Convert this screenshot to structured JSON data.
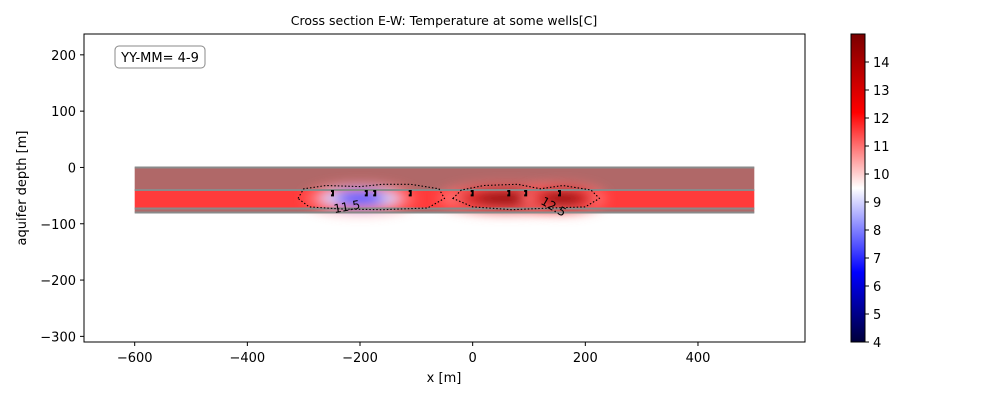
{
  "chart_data": {
    "type": "heatmap",
    "title": "Cross section E-W: Temperature at some wells[C]",
    "xlabel": "x [m]",
    "ylabel": "aquifer depth [m]",
    "annotation": "YY-MM= 4-9",
    "xlim": [
      -690,
      590
    ],
    "ylim": [
      -310,
      237
    ],
    "xticks": [
      -600,
      -400,
      -200,
      0,
      200,
      400
    ],
    "yticks": [
      200,
      100,
      0,
      -100,
      -200,
      -300
    ],
    "grid": false,
    "domain_x": [
      -600,
      500
    ],
    "layers": [
      {
        "top": 0,
        "bottom": -40,
        "color": "#b06868"
      },
      {
        "top": -40,
        "bottom": -73,
        "color": "#ff3b3b"
      },
      {
        "top": -73,
        "bottom": -80,
        "color": "#b06868"
      }
    ],
    "layer_boundaries": [
      0,
      -40,
      -73,
      -80
    ],
    "background_temperature": 12.4,
    "anomalies": [
      {
        "x": -200,
        "y": -55,
        "temperature": 6.5,
        "sigma_x": 45,
        "sigma_y": 12
      },
      {
        "x": 60,
        "y": -55,
        "temperature": 14.6,
        "sigma_x": 55,
        "sigma_y": 12
      },
      {
        "x": 160,
        "y": -55,
        "temperature": 14.5,
        "sigma_x": 35,
        "sigma_y": 12
      }
    ],
    "wells": [
      {
        "x": -248,
        "ytop": -40,
        "ybottom": -62
      },
      {
        "x": -188,
        "ytop": -40,
        "ybottom": -62
      },
      {
        "x": -173,
        "ytop": -40,
        "ybottom": -62
      },
      {
        "x": -110,
        "ytop": -40,
        "ybottom": -62
      },
      {
        "x": 0,
        "ytop": -40,
        "ybottom": -62
      },
      {
        "x": 65,
        "ytop": -40,
        "ybottom": -62
      },
      {
        "x": 95,
        "ytop": -40,
        "ybottom": -62
      },
      {
        "x": 155,
        "ytop": -40,
        "ybottom": -62
      }
    ],
    "contours": [
      {
        "level": "11.5",
        "points": [
          [
            -310,
            -55
          ],
          [
            -300,
            -38
          ],
          [
            -260,
            -32
          ],
          [
            -200,
            -34
          ],
          [
            -160,
            -30
          ],
          [
            -110,
            -30
          ],
          [
            -60,
            -38
          ],
          [
            -50,
            -55
          ],
          [
            -80,
            -72
          ],
          [
            -160,
            -75
          ],
          [
            -230,
            -74
          ],
          [
            -290,
            -70
          ]
        ],
        "label_x": -222,
        "label_y": -77
      },
      {
        "level": "12.5",
        "points": [
          [
            -35,
            -55
          ],
          [
            -20,
            -40
          ],
          [
            20,
            -32
          ],
          [
            80,
            -30
          ],
          [
            120,
            -38
          ],
          [
            160,
            -32
          ],
          [
            210,
            -40
          ],
          [
            225,
            -55
          ],
          [
            200,
            -70
          ],
          [
            140,
            -72
          ],
          [
            70,
            -75
          ],
          [
            0,
            -70
          ]
        ],
        "label_x": 140,
        "label_y": -76
      }
    ],
    "colorbar": {
      "min": 4,
      "max": 15,
      "ticks": [
        4,
        5,
        6,
        7,
        8,
        9,
        10,
        11,
        12,
        13,
        14
      ],
      "stops": [
        [
          4,
          "#00003a"
        ],
        [
          6.5,
          "#0000ff"
        ],
        [
          9.5,
          "#ffffff"
        ],
        [
          12.2,
          "#ff0000"
        ],
        [
          15,
          "#7a0000"
        ]
      ]
    }
  }
}
